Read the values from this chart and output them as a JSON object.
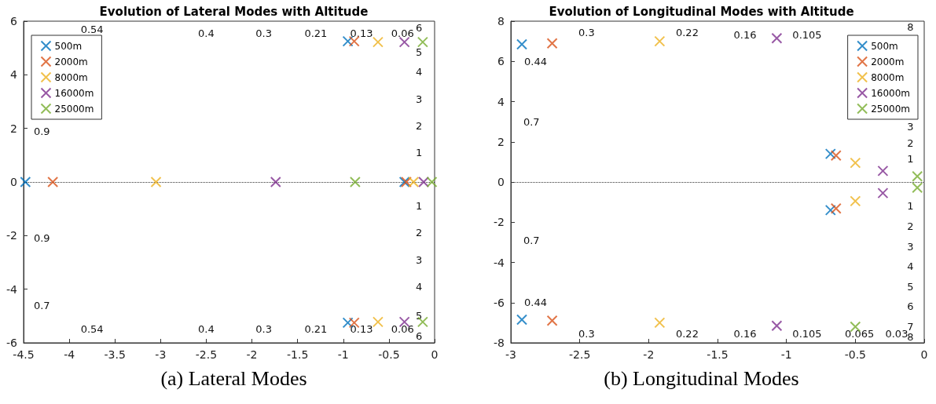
{
  "chart_data": [
    {
      "type": "scatter",
      "title": "Evolution of Lateral Modes with Altitude",
      "marker": "cross",
      "legend": "top left",
      "grid": false,
      "xlim": [
        -4.5,
        0
      ],
      "xticks": [
        -4.5,
        -4,
        -3.5,
        -3,
        -2.5,
        -2,
        -1.5,
        -1,
        -0.5,
        0
      ],
      "ylim": [
        -6,
        6
      ],
      "yticks": [
        -6,
        -4,
        -2,
        0,
        2,
        4,
        6
      ],
      "ref_lines": [
        {
          "axis": "y",
          "value": 0,
          "line_style": "dotted",
          "color": "#333333"
        }
      ],
      "series": [
        {
          "name": "500m",
          "color": "#0072bd",
          "x": [
            -4.48,
            -0.33,
            -0.95,
            -0.95
          ],
          "values": [
            0,
            0,
            5.25,
            -5.25
          ]
        },
        {
          "name": "2000m",
          "color": "#d95319",
          "x": [
            -4.18,
            -0.31,
            -0.88,
            -0.88
          ],
          "values": [
            0,
            0,
            5.25,
            -5.25
          ]
        },
        {
          "name": "8000m",
          "color": "#edb120",
          "x": [
            -3.05,
            -0.23,
            -0.62,
            -0.62
          ],
          "values": [
            0,
            0,
            5.22,
            -5.22
          ]
        },
        {
          "name": "16000m",
          "color": "#7e2f8e",
          "x": [
            -1.74,
            -0.12,
            -0.33,
            -0.33
          ],
          "values": [
            0,
            0,
            5.22,
            -5.22
          ]
        },
        {
          "name": "25000m",
          "color": "#77ac30",
          "x": [
            -0.87,
            -0.03,
            -0.13,
            -0.13
          ],
          "values": [
            0,
            0,
            5.22,
            -5.22
          ]
        }
      ],
      "annotations": [
        "0.54",
        "0.4",
        "0.3",
        "0.21",
        "0.13",
        "0.06",
        "0.9",
        "0.9",
        "0.7",
        "0.54",
        "0.4",
        "0.3",
        "0.21",
        "0.13",
        "0.06",
        "6",
        "5",
        "4",
        "3",
        "2",
        "1",
        "1",
        "2",
        "3",
        "4",
        "5",
        "6",
        "(a) Lateral Modes"
      ]
    },
    {
      "type": "scatter",
      "title": "Evolution of Longitudinal Modes with Altitude",
      "marker": "cross",
      "legend": "top right",
      "grid": false,
      "xlim": [
        -3,
        0
      ],
      "xticks": [
        -3,
        -2.5,
        -2,
        -1.5,
        -1,
        -0.5,
        0
      ],
      "ylim": [
        -8,
        8
      ],
      "yticks": [
        -8,
        -6,
        -4,
        -2,
        0,
        2,
        4,
        6,
        8
      ],
      "ref_lines": [
        {
          "axis": "y",
          "value": 0,
          "line_style": "dotted",
          "color": "#333333"
        }
      ],
      "series": [
        {
          "name": "500m",
          "color": "#0072bd",
          "x": [
            -2.92,
            -2.92,
            -0.68,
            -0.68
          ],
          "values": [
            6.85,
            -6.85,
            1.4,
            -1.4
          ]
        },
        {
          "name": "2000m",
          "color": "#d95319",
          "x": [
            -2.7,
            -2.7,
            -0.64,
            -0.64
          ],
          "values": [
            6.9,
            -6.9,
            1.32,
            -1.32
          ]
        },
        {
          "name": "8000m",
          "color": "#edb120",
          "x": [
            -1.92,
            -1.92,
            -0.5,
            -0.5
          ],
          "values": [
            7.0,
            -7.0,
            0.95,
            -0.95
          ]
        },
        {
          "name": "16000m",
          "color": "#7e2f8e",
          "x": [
            -1.07,
            -1.07,
            -0.3,
            -0.3
          ],
          "values": [
            7.15,
            -7.15,
            0.55,
            -0.55
          ]
        },
        {
          "name": "25000m",
          "color": "#77ac30",
          "x": [
            -0.5,
            -0.05,
            -0.05
          ],
          "values": [
            -7.2,
            0.28,
            -0.28
          ]
        }
      ],
      "annotations": [
        "0.3",
        "0.22",
        "0.16",
        "0.105",
        "0.44",
        "0.7",
        "0.7",
        "0.44",
        "0.3",
        "0.22",
        "0.16",
        "0.105",
        "0.065",
        "0.03",
        "8",
        "3",
        "2",
        "1",
        "1",
        "2",
        "3",
        "4",
        "5",
        "6",
        "7",
        "8",
        "(b) Longitudinal Modes"
      ]
    }
  ]
}
